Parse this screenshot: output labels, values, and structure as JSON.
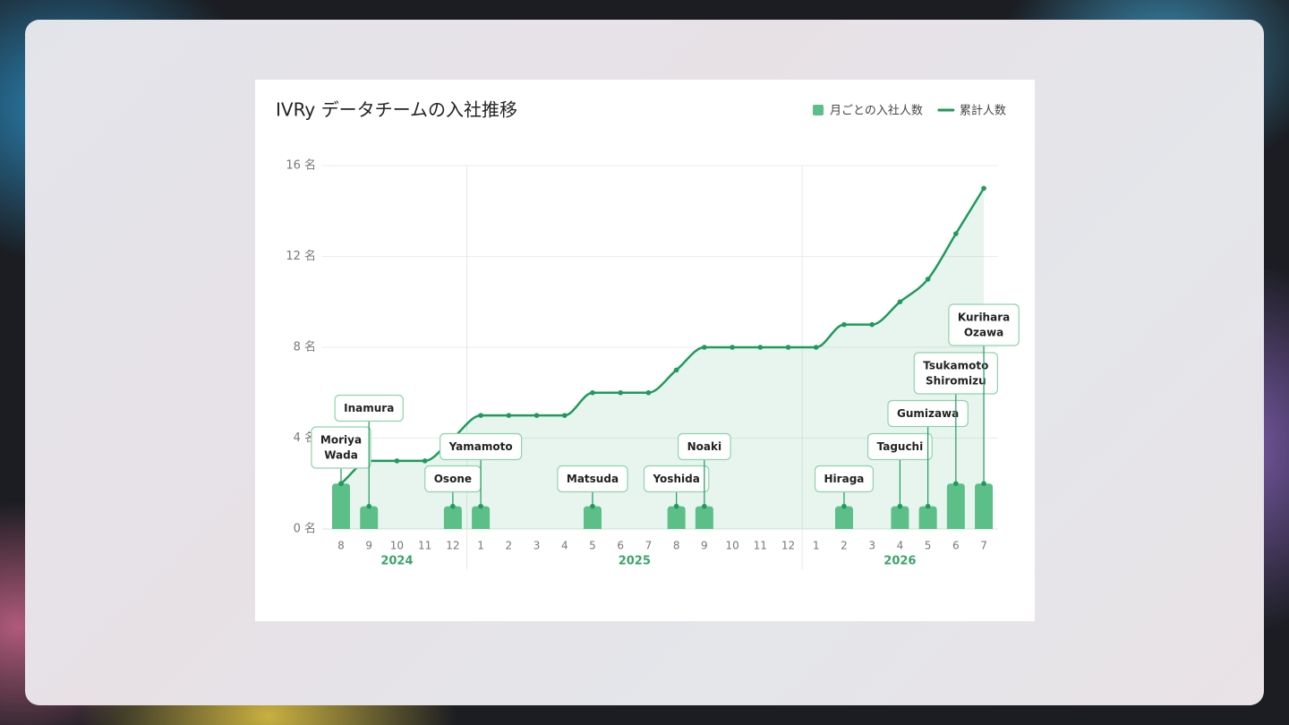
{
  "chart_data": {
    "type": "combo",
    "title": "IVRy データチームの入社推移",
    "categories": [
      "8",
      "9",
      "10",
      "11",
      "12",
      "1",
      "2",
      "3",
      "4",
      "5",
      "6",
      "7",
      "8",
      "9",
      "10",
      "11",
      "12",
      "1",
      "2",
      "3",
      "4",
      "5",
      "6",
      "7"
    ],
    "years": [
      "2024",
      "2025",
      "2026"
    ],
    "series": [
      {
        "name": "月ごとの入社人数",
        "type": "bar",
        "color": "#5bbf87",
        "values": [
          2,
          1,
          0,
          0,
          1,
          1,
          0,
          0,
          0,
          1,
          0,
          0,
          1,
          1,
          0,
          0,
          0,
          0,
          1,
          0,
          1,
          1,
          2,
          2
        ]
      },
      {
        "name": "累計人数",
        "type": "line",
        "color": "#1e9a5c",
        "values": [
          2,
          3,
          3,
          3,
          4,
          5,
          5,
          5,
          5,
          6,
          6,
          6,
          7,
          8,
          8,
          8,
          8,
          8,
          9,
          9,
          10,
          11,
          13,
          15
        ]
      }
    ],
    "hires": [
      [
        "Moriya",
        "Wada"
      ],
      [
        "Inamura"
      ],
      null,
      null,
      [
        "Osone"
      ],
      [
        "Yamamoto"
      ],
      null,
      null,
      null,
      [
        "Matsuda"
      ],
      null,
      null,
      [
        "Yoshida"
      ],
      [
        "Noaki"
      ],
      null,
      null,
      null,
      null,
      [
        "Hiraga"
      ],
      null,
      [
        "Taguchi"
      ],
      [
        "Gumizawa"
      ],
      [
        "Tsukamoto",
        "Shiromizu"
      ],
      [
        "Kurihara",
        "Ozawa"
      ]
    ],
    "ylim": [
      0,
      16
    ],
    "yticks": [
      {
        "value": 0,
        "label": "0 名"
      },
      {
        "value": 4,
        "label": "4 名"
      },
      {
        "value": 8,
        "label": "8 名"
      },
      {
        "value": 12,
        "label": "12 名"
      },
      {
        "value": 16,
        "label": "16 名"
      }
    ],
    "grid": true
  }
}
